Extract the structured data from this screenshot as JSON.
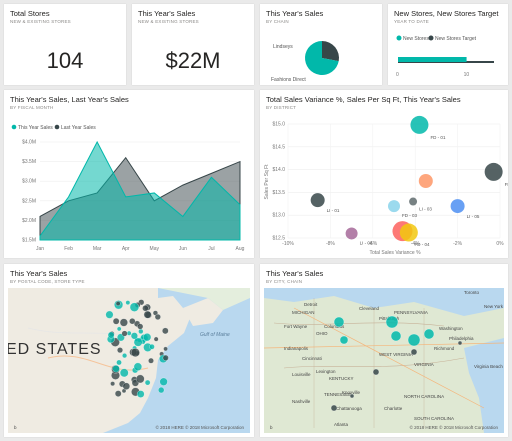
{
  "tiles": {
    "total_stores": {
      "title": "Total Stores",
      "subtitle": "NEW & EXISTING STORES",
      "value": "104"
    },
    "this_years_sales_card": {
      "title": "This Year's Sales",
      "subtitle": "NEW & EXISTING STORES",
      "value": "$22M"
    },
    "sales_by_chain": {
      "title": "This Year's Sales",
      "subtitle": "BY CHAIN"
    },
    "new_stores_target": {
      "title": "New Stores, New Stores Target",
      "subtitle": "YEAR TO DATE"
    },
    "sales_by_month": {
      "title": "This Year's Sales, Last Year's Sales",
      "subtitle": "BY FISCAL MONTH"
    },
    "variance_scatter": {
      "title": "Total Sales Variance %, Sales Per Sq Ft, This Year's Sales",
      "subtitle": "BY DISTRICT"
    },
    "map_postal": {
      "title": "This Year's Sales",
      "subtitle": "BY POSTAL CODE, STORE TYPE",
      "map_label": "ED STATES",
      "gulf_label": "Gulf of\nMaine",
      "copyright": "© 2018 HERE © 2018 Microsoft Corporation",
      "logo": "b"
    },
    "map_city": {
      "title": "This Year's Sales",
      "subtitle": "BY CITY, CHAIN",
      "copyright": "© 2018 HERE © 2018 Microsoft Corporation",
      "logo": "b"
    }
  },
  "colors": {
    "teal": "#01b8aa",
    "dark": "#374649",
    "red": "#fd625e",
    "yellow": "#f2c80f",
    "orange": "#fe9666",
    "purple": "#8ad4eb",
    "blue": "#5f6b6d"
  },
  "map_place_labels": [
    "Columbus",
    "OHIO",
    "Pittsburgh",
    "PENNSYLVANIA",
    "Philadelphia",
    "Indianapolis",
    "Cincinnati",
    "WEST VIRGINIA",
    "KENTUCKY",
    "VIRGINIA",
    "Richmond",
    "Louisville",
    "Lexington",
    "NORTH CAROLINA",
    "Charlotte",
    "Nashville",
    "TENNESSEE",
    "Knoxville",
    "Atlanta",
    "SOUTH CAROLINA",
    "Chattanooga",
    "Toronto",
    "Detroit",
    "Fort Wayne",
    "Cleveland",
    "MICHIGAN",
    "Washington",
    "Virginia Beach",
    "New York"
  ],
  "chart_data": [
    {
      "type": "pie",
      "title": "This Year's Sales",
      "categories": [
        "Lindseys",
        "Fashions Direct"
      ],
      "values": [
        0.28,
        0.72
      ],
      "colors": [
        "#374649",
        "#01b8aa"
      ]
    },
    {
      "type": "bar",
      "title": "New Stores, New Stores Target",
      "categories": [
        "New Stores",
        "New Stores Target"
      ],
      "values": [
        10,
        14
      ],
      "xlim": [
        0,
        14
      ],
      "tick_labels": [
        "0",
        "10"
      ],
      "colors": [
        "#01b8aa",
        "#374649"
      ]
    },
    {
      "type": "area",
      "title": "This Year's Sales, Last Year's Sales",
      "categories": [
        "Jan",
        "Feb",
        "Mar",
        "Apr",
        "May",
        "Jun",
        "Jul",
        "Aug"
      ],
      "series": [
        {
          "name": "This Year Sales",
          "values": [
            1.6,
            2.6,
            4.0,
            2.6,
            2.7,
            2.1,
            3.1,
            2.4
          ],
          "color": "#01b8aa"
        },
        {
          "name": "Last Year Sales",
          "values": [
            2.1,
            2.5,
            2.7,
            3.6,
            2.5,
            2.9,
            3.2,
            3.5
          ],
          "color": "#374649"
        }
      ],
      "y_tick_labels": [
        "$1.5M",
        "$2.0M",
        "$2.5M",
        "$3.0M",
        "$3.5M",
        "$4.0M"
      ],
      "ylim": [
        1.5,
        4.0
      ]
    },
    {
      "type": "scatter",
      "title": "Total Sales Variance %, Sales Per Sq Ft, This Year's Sales",
      "xlabel": "Total Sales Variance %",
      "ylabel": "Sales Per Sq Ft",
      "xlim": [
        -10,
        0
      ],
      "ylim": [
        12.5,
        15.0
      ],
      "x_tick_labels": [
        "-10%",
        "-8%",
        "-6%",
        "-4%",
        "-2%",
        "0%"
      ],
      "y_tick_labels": [
        "$12.5",
        "$13.0",
        "$13.5",
        "$14.0",
        "$14.5",
        "$15.0"
      ],
      "points": [
        {
          "label": "FD - 01",
          "x": -3.8,
          "y": 14.98,
          "size": 9,
          "color": "#01b8aa"
        },
        {
          "label": "FD - 02",
          "x": -0.3,
          "y": 13.95,
          "size": 9,
          "color": "#374649"
        },
        {
          "label": "",
          "x": -3.5,
          "y": 13.75,
          "size": 7,
          "color": "#fe9666"
        },
        {
          "label": "LI - 01",
          "x": -8.6,
          "y": 13.33,
          "size": 7,
          "color": "#374649"
        },
        {
          "label": "FD - 03",
          "x": -5.0,
          "y": 13.2,
          "size": 6,
          "color": "#8ad4eb"
        },
        {
          "label": "LI - 03",
          "x": -4.1,
          "y": 13.3,
          "size": 4,
          "color": "#5f6b6d"
        },
        {
          "label": "LI - 05",
          "x": -2.0,
          "y": 13.2,
          "size": 7,
          "color": "#4e8ff2"
        },
        {
          "label": "LI - 04",
          "x": -7.0,
          "y": 12.6,
          "size": 6,
          "color": "#a66999"
        },
        {
          "label": "FD - 04",
          "x": -4.6,
          "y": 12.65,
          "size": 10,
          "color": "#fd625e"
        },
        {
          "label": "",
          "x": -4.3,
          "y": 12.62,
          "size": 9,
          "color": "#f2c80f"
        }
      ]
    }
  ]
}
